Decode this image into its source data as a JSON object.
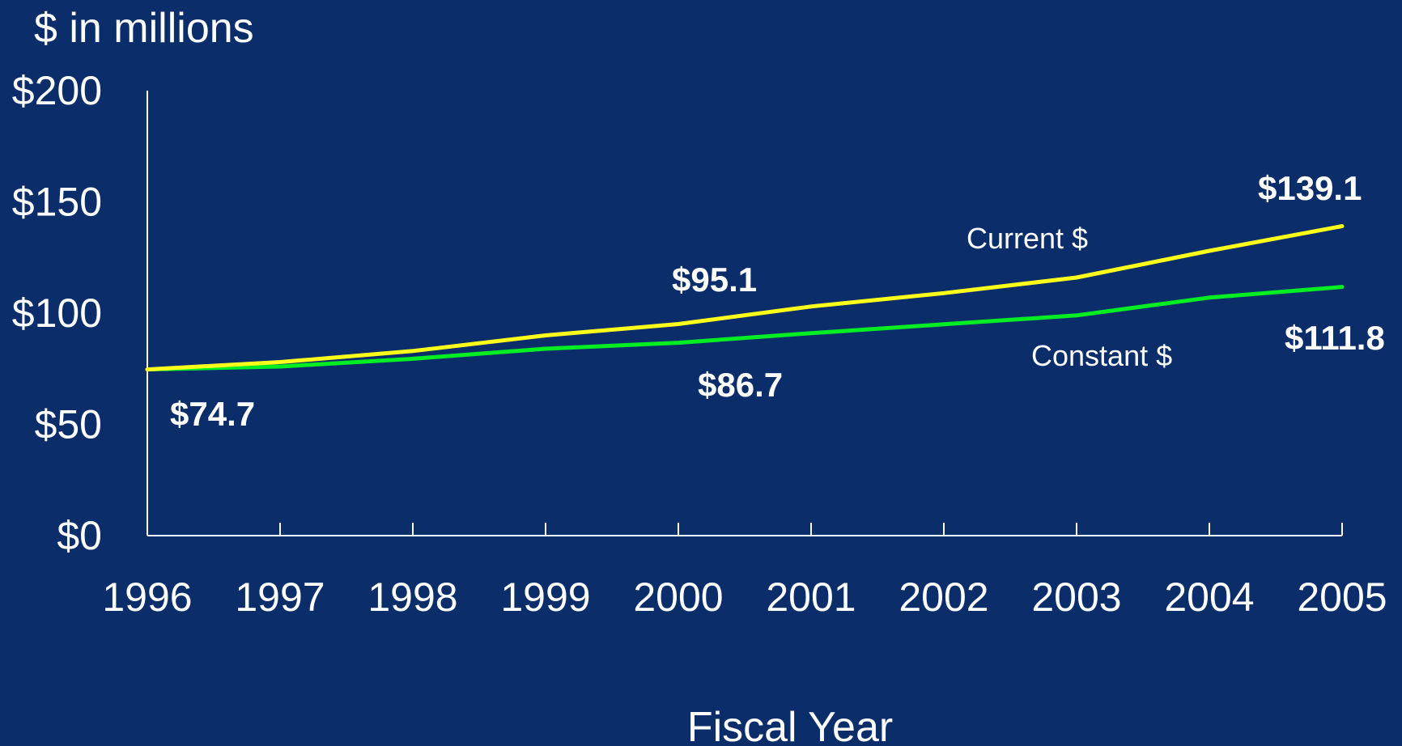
{
  "chart_data": {
    "type": "line",
    "ylabel": "$ in millions",
    "xlabel": "Fiscal Year",
    "x": [
      "1996",
      "1997",
      "1998",
      "1999",
      "2000",
      "2001",
      "2002",
      "2003",
      "2004",
      "2005"
    ],
    "ylim": [
      0,
      200
    ],
    "yticks": [
      {
        "value": 0,
        "label": "$0"
      },
      {
        "value": 50,
        "label": "$50"
      },
      {
        "value": 100,
        "label": "$100"
      },
      {
        "value": 150,
        "label": "$150"
      },
      {
        "value": 200,
        "label": "$200"
      }
    ],
    "grid": false,
    "legend": "none",
    "series": [
      {
        "name": "Current $",
        "color": "#ffff1a",
        "values": [
          74.7,
          78,
          83,
          90,
          95.1,
          103,
          109,
          116,
          128,
          139.1
        ]
      },
      {
        "name": "Constant $",
        "color": "#00ee22",
        "values": [
          74.7,
          76,
          79.5,
          84,
          86.7,
          91,
          95,
          99,
          107,
          111.8
        ]
      }
    ],
    "data_labels": [
      {
        "series": 0,
        "index": 0,
        "text": "$74.7"
      },
      {
        "series": 0,
        "index": 4,
        "text": "$95.1"
      },
      {
        "series": 0,
        "index": 9,
        "text": "$139.1"
      },
      {
        "series": 1,
        "index": 4,
        "text": "$86.7"
      },
      {
        "series": 1,
        "index": 9,
        "text": "$111.8"
      }
    ]
  }
}
